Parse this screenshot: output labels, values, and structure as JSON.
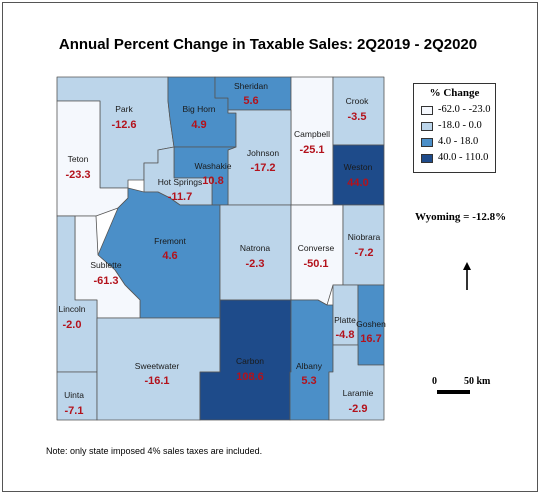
{
  "title": "Annual Percent Change in Taxable Sales: 2Q2019 - 2Q2020",
  "legend": {
    "title": "% Change",
    "classes": [
      {
        "label": "-62.0 - -23.0",
        "color": "#f5f8fd"
      },
      {
        "label": "-18.0 - 0.0",
        "color": "#bcd5ea"
      },
      {
        "label": "4.0 - 18.0",
        "color": "#4b8fc8"
      },
      {
        "label": "40.0 - 110.0",
        "color": "#1e4b8a"
      }
    ]
  },
  "statewide": "Wyoming = -12.8%",
  "scale": {
    "start": "0",
    "end": "50 km"
  },
  "note": "Note: only state imposed 4% sales taxes are included.",
  "counties": {
    "park": {
      "name": "Park",
      "value": "-12.6",
      "class": 1
    },
    "big_horn": {
      "name": "Big Horn",
      "value": "4.9",
      "class": 2
    },
    "sheridan": {
      "name": "Sheridan",
      "value": "5.6",
      "class": 2
    },
    "crook": {
      "name": "Crook",
      "value": "-3.5",
      "class": 1
    },
    "campbell": {
      "name": "Campbell",
      "value": "-25.1",
      "class": 0
    },
    "johnson": {
      "name": "Johnson",
      "value": "-17.2",
      "class": 1
    },
    "washakie": {
      "name": "Washakie",
      "value": "10.8",
      "class": 2
    },
    "hot_springs": {
      "name": "Hot Springs",
      "value": "-11.7",
      "class": 1
    },
    "teton": {
      "name": "Teton",
      "value": "-23.3",
      "class": 0
    },
    "weston": {
      "name": "Weston",
      "value": "44.0",
      "class": 3
    },
    "fremont": {
      "name": "Fremont",
      "value": "4.6",
      "class": 2
    },
    "natrona": {
      "name": "Natrona",
      "value": "-2.3",
      "class": 1
    },
    "converse": {
      "name": "Converse",
      "value": "-50.1",
      "class": 0
    },
    "niobrara": {
      "name": "Niobrara",
      "value": "-7.2",
      "class": 1
    },
    "sublette": {
      "name": "Sublette",
      "value": "-61.3",
      "class": 0
    },
    "lincoln": {
      "name": "Lincoln",
      "value": "-2.0",
      "class": 1
    },
    "platte": {
      "name": "Platte",
      "value": "-4.8",
      "class": 1
    },
    "goshen": {
      "name": "Goshen",
      "value": "16.7",
      "class": 2
    },
    "sweetwater": {
      "name": "Sweetwater",
      "value": "-16.1",
      "class": 1
    },
    "carbon": {
      "name": "Carbon",
      "value": "108.6",
      "class": 3
    },
    "albany": {
      "name": "Albany",
      "value": "5.3",
      "class": 2
    },
    "uinta": {
      "name": "Uinta",
      "value": "-7.1",
      "class": 1
    },
    "laramie": {
      "name": "Laramie",
      "value": "-2.9",
      "class": 1
    }
  }
}
